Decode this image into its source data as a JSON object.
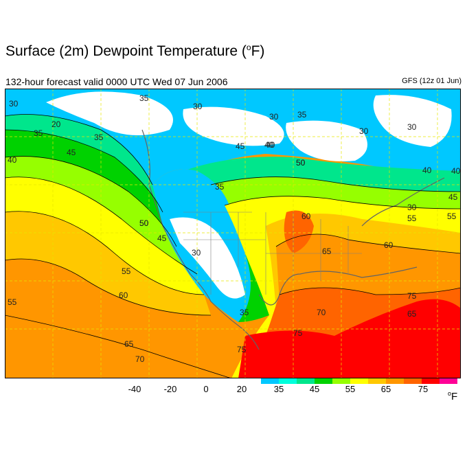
{
  "header": {
    "title": "Surface (2m) Dewpoint Temperature (",
    "title_degree": "o",
    "title_unit": "F)",
    "subtitle": "132-hour forecast valid 0000 UTC Wed 07 Jun 2006",
    "model": "GFS (12z 01 Jun)"
  },
  "colors": {
    "white": "#ffffff",
    "c30": "#00c8ff",
    "c35": "#00ffdc",
    "c40": "#00e68c",
    "c45": "#00d200",
    "c50": "#96ff00",
    "c55": "#ffff00",
    "c60": "#ffc800",
    "c65": "#ff9600",
    "c70": "#ff6400",
    "c75": "#ff0000",
    "c80": "#ff0096",
    "lines": "#646464",
    "grid": "#e6e600"
  },
  "colorbar": {
    "tick_labels": [
      "-40",
      "-20",
      "0",
      "20",
      "35",
      "45",
      "55",
      "65",
      "75"
    ],
    "swatches": [
      "#00c8ff",
      "#00ffdc",
      "#00e68c",
      "#00d200",
      "#96ff00",
      "#ffff00",
      "#ffc800",
      "#ff9600",
      "#ff6400",
      "#ff0000",
      "#ff0096"
    ],
    "unit_degree": "o",
    "unit": "F"
  },
  "contour_labels": [
    "30",
    "35",
    "30",
    "20",
    "35",
    "35",
    "45",
    "40",
    "45",
    "50",
    "50",
    "40",
    "55",
    "45",
    "40",
    "30",
    "35",
    "30",
    "30",
    "30",
    "35",
    "30",
    "40",
    "45",
    "50",
    "55",
    "60",
    "65",
    "70",
    "55",
    "60",
    "65",
    "70",
    "75",
    "75",
    "60",
    "75",
    "35",
    "50",
    "40",
    "55",
    "65"
  ]
}
